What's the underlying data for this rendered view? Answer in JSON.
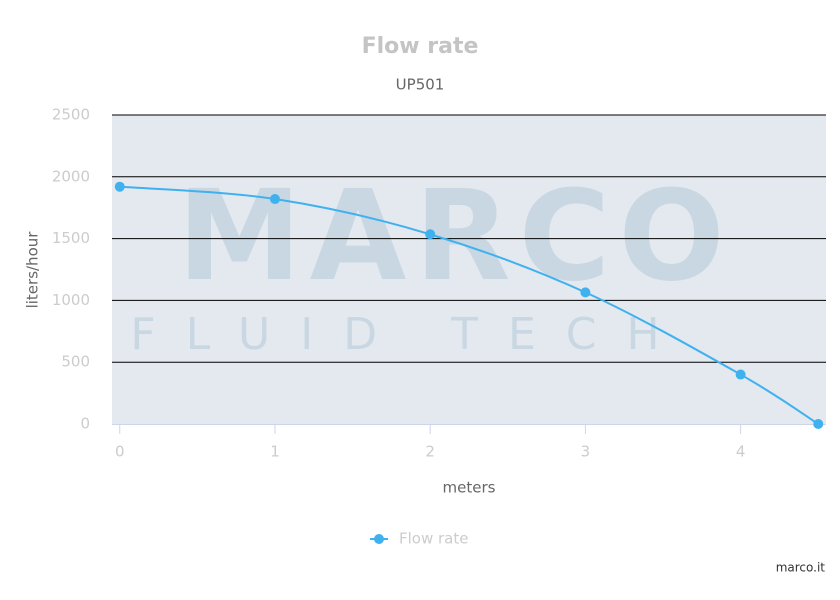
{
  "chart_data": {
    "type": "line",
    "title": "Flow rate",
    "subtitle": "UP501",
    "x_label": "meters",
    "y_label": "liters/hour",
    "x": [
      0,
      1,
      2,
      3,
      4,
      4.5
    ],
    "series": [
      {
        "name": "Flow rate",
        "color": "#3fb1ef",
        "values": [
          1920,
          1820,
          1535,
          1065,
          400,
          0
        ]
      }
    ],
    "xlim": [
      -0.05,
      4.55
    ],
    "xticks": [
      0,
      1,
      2,
      3,
      4
    ],
    "ylim": [
      0,
      2500
    ],
    "yticks": [
      0,
      500,
      1000,
      1500,
      2000,
      2500
    ],
    "grid": true,
    "legend": "bottom",
    "smooth": true,
    "watermark": [
      "MARCO",
      "FLUID TECH"
    ],
    "credits": "marco.it"
  }
}
